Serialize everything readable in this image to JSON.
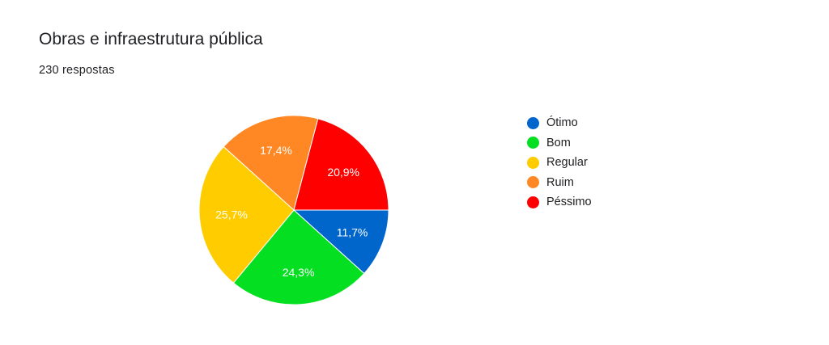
{
  "header": {
    "title": "Obras e infraestrutura pública",
    "responses": "230 respostas"
  },
  "chart_data": {
    "type": "pie",
    "categories": [
      "Ótimo",
      "Bom",
      "Regular",
      "Ruim",
      "Péssimo"
    ],
    "values": [
      11.7,
      24.3,
      25.7,
      17.4,
      20.9
    ],
    "labels": [
      "11,7%",
      "24,3%",
      "25,7%",
      "17,4%",
      "20,9%"
    ],
    "colors": [
      "#0066cc",
      "#05df22",
      "#ffcc00",
      "#ff8824",
      "#ff0000"
    ],
    "legend_position": "right",
    "start_direction": "3 o'clock, clockwise"
  }
}
